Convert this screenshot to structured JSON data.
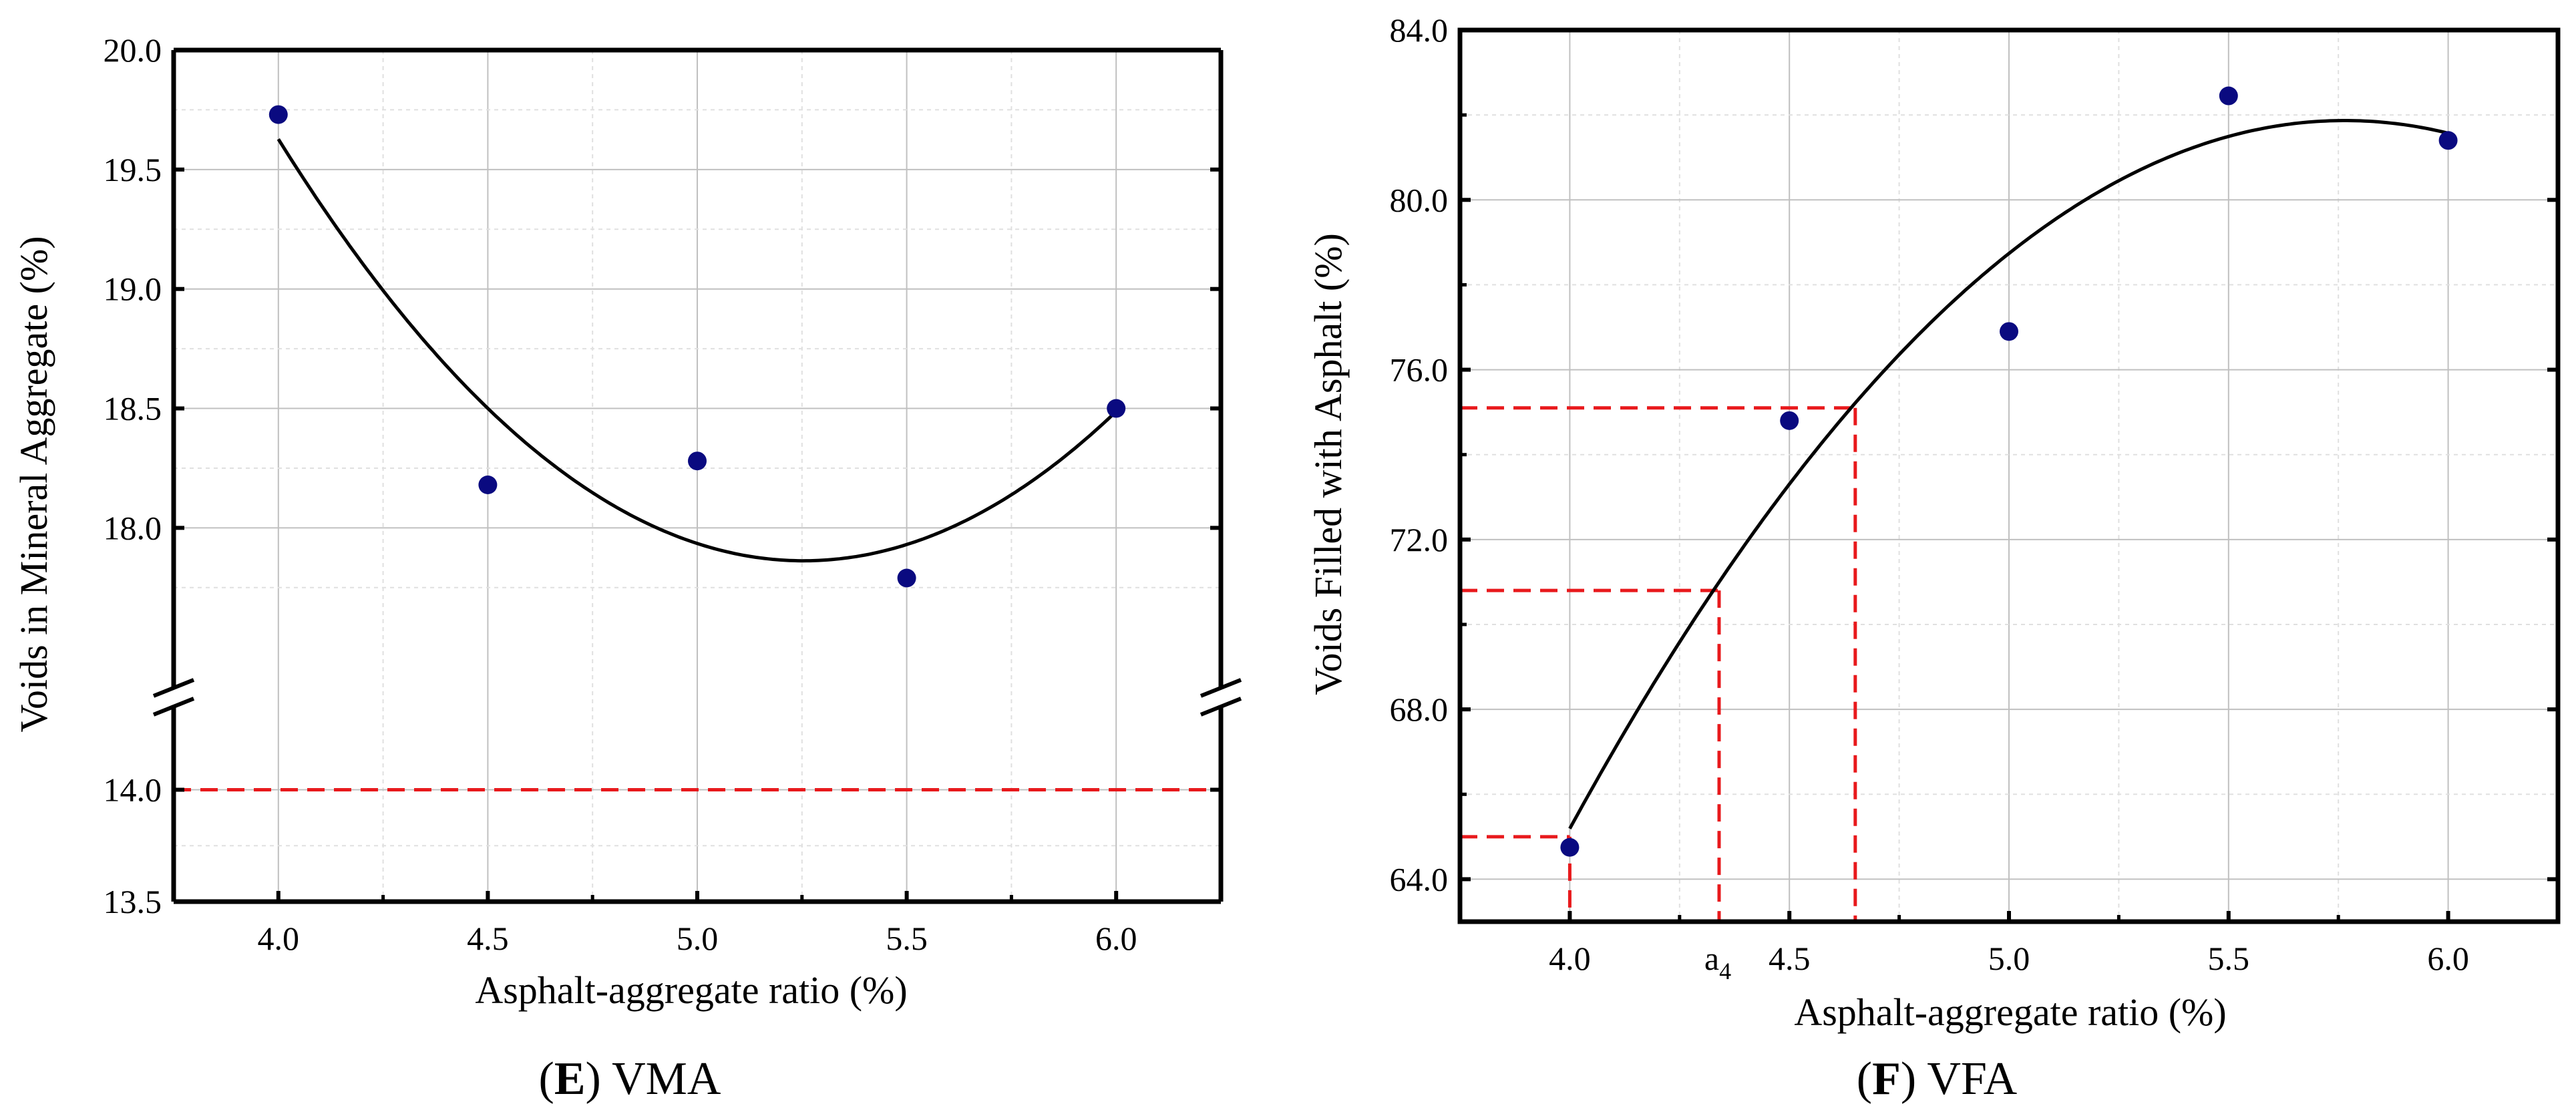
{
  "colors": {
    "point": "#0a0a80",
    "fit": "#000000",
    "reference": "#e8191c",
    "grid": "#c0c0c0"
  },
  "chart_data": [
    {
      "panel": "E",
      "caption_letter": "E",
      "caption_text": "VMA",
      "type": "scatter",
      "xlabel": "Asphalt-aggregate ratio (%)",
      "ylabel": "Voids in Mineral Aggregate (%)",
      "xlim": [
        3.75,
        6.25
      ],
      "x_ticks": [
        "4.0",
        "4.5",
        "5.0",
        "5.5",
        "6.0"
      ],
      "y_ticks_upper": [
        "18.0",
        "18.5",
        "19.0",
        "19.5",
        "20.0"
      ],
      "y_ticks_lower": [
        "13.5",
        "14.0"
      ],
      "axis_break": {
        "lower_range": [
          13.5,
          14.3
        ],
        "upper_range": [
          17.4,
          20.0
        ]
      },
      "grid": true,
      "series": [
        {
          "kind": "points",
          "x": [
            4.0,
            4.5,
            5.0,
            5.5,
            6.0
          ],
          "y": [
            19.73,
            18.18,
            18.28,
            17.79,
            18.5
          ]
        },
        {
          "kind": "fit-curve",
          "fit": "quadratic",
          "x_range": [
            4.0,
            6.0
          ]
        }
      ],
      "reference_lines": [
        {
          "orientation": "horizontal",
          "y": 14.0
        }
      ]
    },
    {
      "panel": "F",
      "caption_letter": "F",
      "caption_text": "VFA",
      "type": "scatter",
      "xlabel": "Asphalt-aggregate ratio (%)",
      "ylabel": "Voids Filled with Asphalt (%)",
      "xlim": [
        3.75,
        6.25
      ],
      "ylim": [
        63.0,
        84.0
      ],
      "x_ticks": [
        "4.0",
        "4.5",
        "5.0",
        "5.5",
        "6.0"
      ],
      "y_ticks": [
        "64.0",
        "68.0",
        "72.0",
        "76.0",
        "80.0",
        "84.0"
      ],
      "grid": true,
      "series": [
        {
          "kind": "points",
          "x": [
            4.0,
            4.5,
            5.0,
            5.5,
            6.0
          ],
          "y": [
            64.75,
            74.8,
            76.9,
            82.45,
            81.4
          ]
        },
        {
          "kind": "fit-curve",
          "fit": "quadratic",
          "x_range": [
            4.0,
            6.0
          ]
        }
      ],
      "annotation": {
        "label": "a",
        "subscript": "4",
        "x": 4.34
      },
      "reference_guides": [
        {
          "x": 4.0,
          "y": 65.0
        },
        {
          "x": 4.34,
          "y": 70.8
        },
        {
          "x": 4.65,
          "y": 75.1
        }
      ]
    }
  ]
}
